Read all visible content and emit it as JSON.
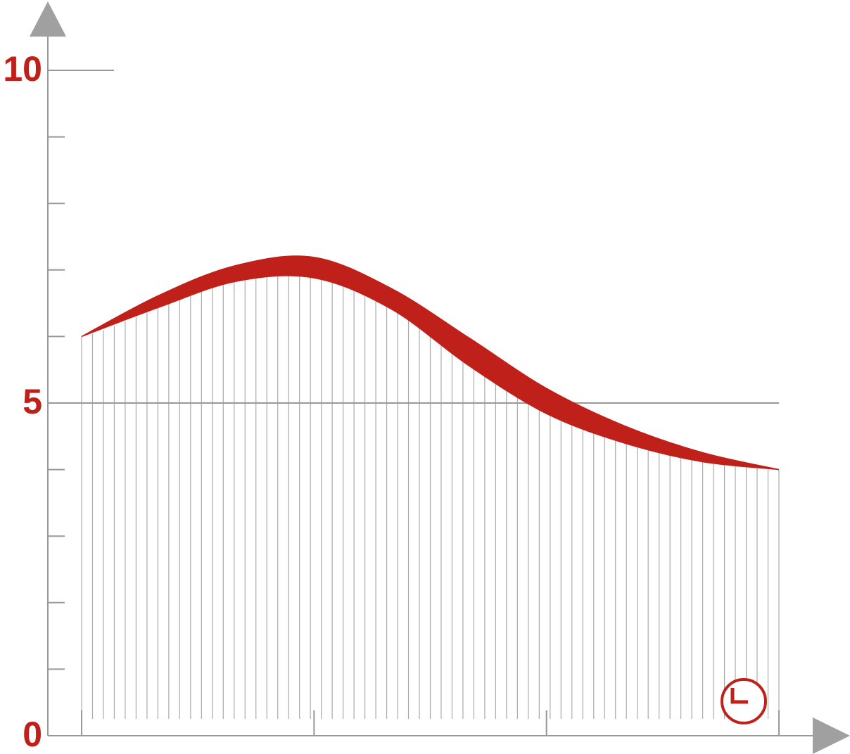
{
  "chart_data": {
    "type": "band",
    "x": [
      0,
      1,
      2,
      3,
      4,
      5,
      6,
      7,
      8,
      9
    ],
    "series": [
      {
        "color": "#c0201a",
        "values": [
          6.0,
          6.62,
          7.07,
          7.19,
          6.72,
          5.98,
          5.22,
          4.66,
          4.26,
          4.0
        ]
      },
      {
        "color": "#c0201a",
        "values": [
          6.0,
          6.44,
          6.83,
          6.88,
          6.41,
          5.56,
          4.84,
          4.4,
          4.12,
          4.0
        ]
      }
    ],
    "xlim": [
      0,
      9
    ],
    "xticks": [
      0,
      3,
      6,
      9
    ],
    "ylim": [
      0,
      10
    ],
    "yticks": [
      0,
      5,
      10
    ],
    "yminor_ticks": [
      1,
      2,
      3,
      4,
      6,
      7,
      8,
      9
    ],
    "grid": true,
    "hatch": true
  }
}
